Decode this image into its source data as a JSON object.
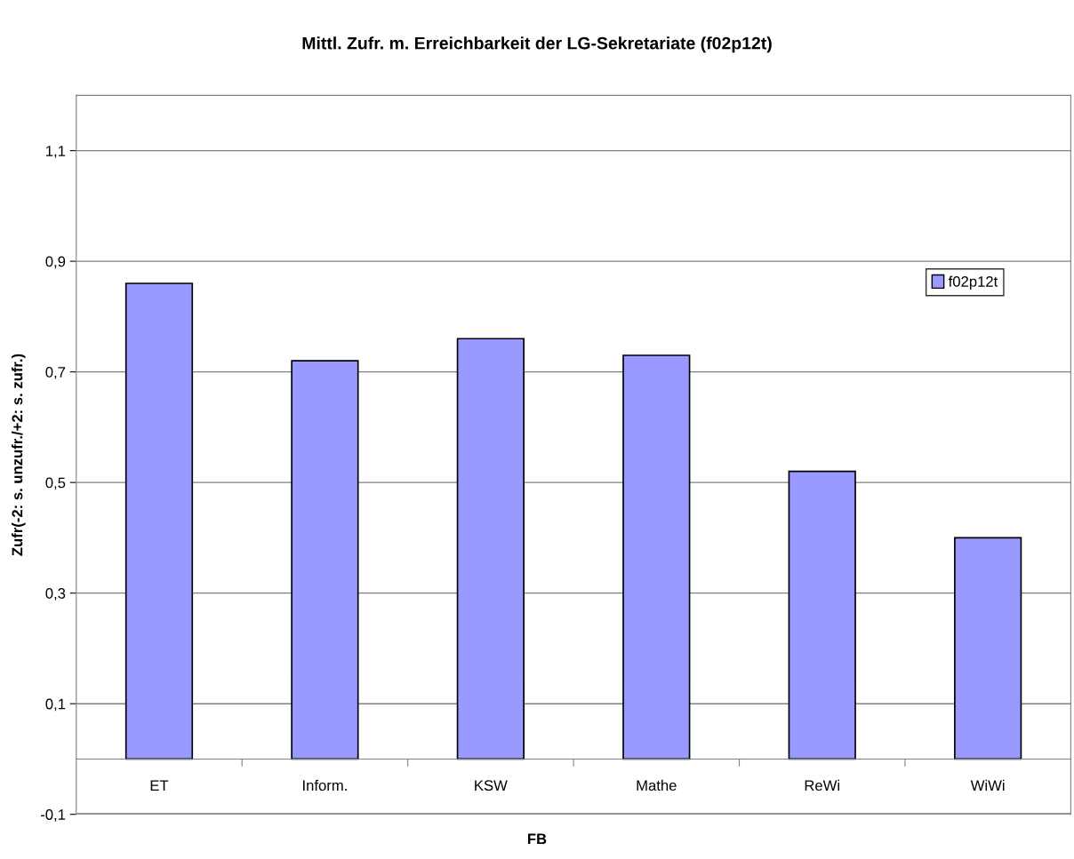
{
  "chart_data": {
    "type": "bar",
    "title": "Mittl. Zufr. m. Erreichbarkeit der LG-Sekretariate (f02p12t)",
    "xlabel": "FB",
    "ylabel": "Zufr(-2: s. unzufr./+2: s. zufr.)",
    "categories": [
      "ET",
      "Inform.",
      "KSW",
      "Mathe",
      "ReWi",
      "WiWi"
    ],
    "series": [
      {
        "name": "f02p12t",
        "color": "#9999ff",
        "values": [
          0.86,
          0.72,
          0.76,
          0.73,
          0.52,
          0.4
        ]
      }
    ],
    "ylim": [
      -0.1,
      1.2
    ],
    "yticks": [
      {
        "value": -0.1,
        "label": "-0,1"
      },
      {
        "value": 0.1,
        "label": "0,1"
      },
      {
        "value": 0.3,
        "label": "0,3"
      },
      {
        "value": 0.5,
        "label": "0,5"
      },
      {
        "value": 0.7,
        "label": "0,7"
      },
      {
        "value": 0.9,
        "label": "0,9"
      },
      {
        "value": 1.1,
        "label": "1,1"
      }
    ],
    "grid": "y",
    "legend": "right"
  }
}
